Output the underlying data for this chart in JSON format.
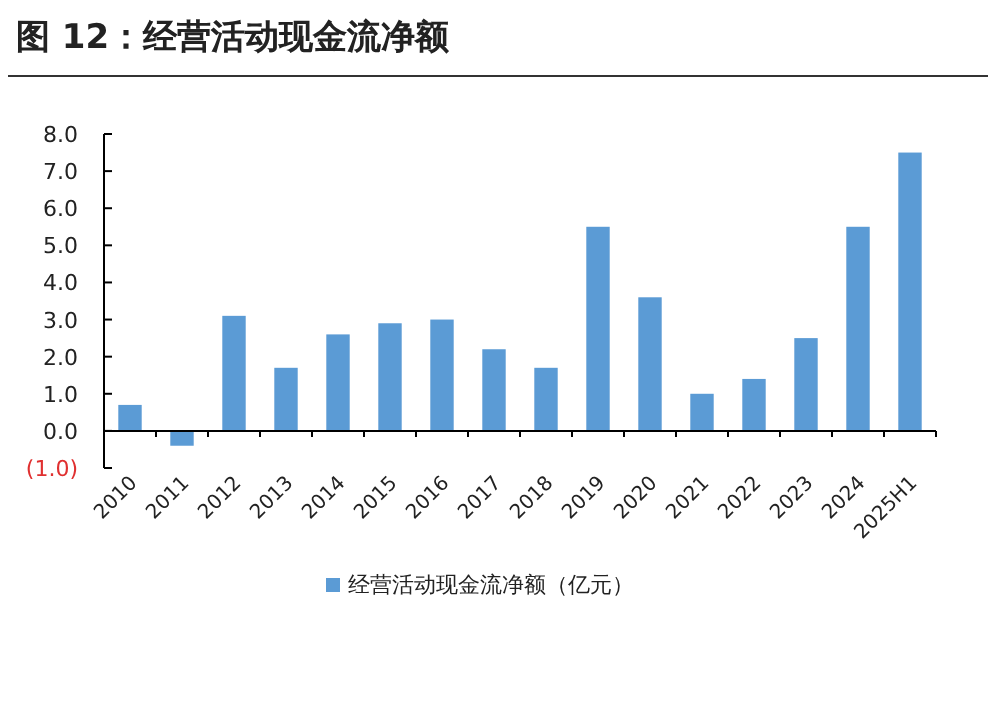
{
  "chart_data": {
    "type": "bar",
    "title": "图 12：经营活动现金流净额",
    "categories": [
      "2010",
      "2011",
      "2012",
      "2013",
      "2014",
      "2015",
      "2016",
      "2017",
      "2018",
      "2019",
      "2020",
      "2021",
      "2022",
      "2023",
      "2024",
      "2025H1"
    ],
    "series": [
      {
        "name": "经营活动现金流净额（亿元）",
        "color": "#5b9bd5",
        "values": [
          0.7,
          -0.4,
          3.1,
          1.7,
          2.6,
          2.9,
          3.0,
          2.2,
          1.7,
          5.5,
          3.6,
          1.0,
          1.4,
          2.5,
          5.5,
          7.5
        ]
      }
    ],
    "ylim": [
      -1,
      8
    ],
    "yticks": [
      {
        "value": -1,
        "label": "(1.0)"
      },
      {
        "value": 0,
        "label": "0.0"
      },
      {
        "value": 1,
        "label": "1.0"
      },
      {
        "value": 2,
        "label": "2.0"
      },
      {
        "value": 3,
        "label": "3.0"
      },
      {
        "value": 4,
        "label": "4.0"
      },
      {
        "value": 5,
        "label": "5.0"
      },
      {
        "value": 6,
        "label": "6.0"
      },
      {
        "value": 7,
        "label": "7.0"
      },
      {
        "value": 8,
        "label": "8.0"
      }
    ],
    "legend": "bottom"
  }
}
